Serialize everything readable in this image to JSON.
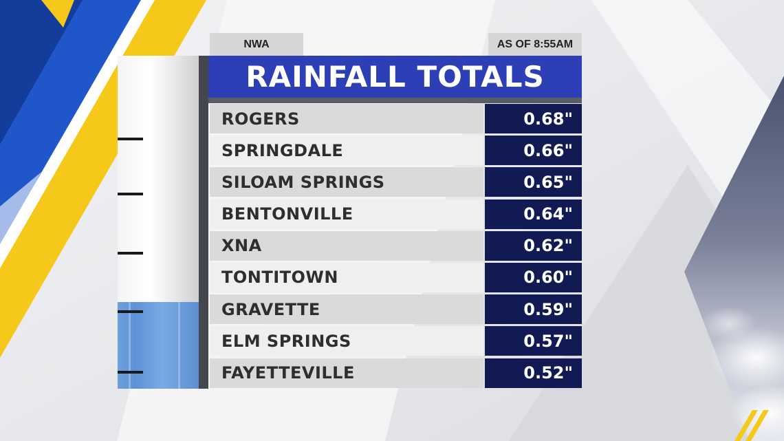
{
  "header": {
    "region_label": "NWA",
    "timestamp_label": "AS OF 8:55AM",
    "title": "RAINFALL TOTALS"
  },
  "gauge": {
    "fill_fraction": 0.26
  },
  "colors": {
    "title_bar": "#2d3fb6",
    "value_cell": "#111a52",
    "row_dark": "#dadada",
    "row_light": "#efefef",
    "gauge_fill": "#6a9bdc",
    "brand_blue": "#1f56c9",
    "brand_yellow": "#f6c81a"
  },
  "rows": [
    {
      "city": "ROGERS",
      "value": "0.68\""
    },
    {
      "city": "SPRINGDALE",
      "value": "0.66\""
    },
    {
      "city": "SILOAM SPRINGS",
      "value": "0.65\""
    },
    {
      "city": "BENTONVILLE",
      "value": "0.64\""
    },
    {
      "city": "XNA",
      "value": "0.62\""
    },
    {
      "city": "TONTITOWN",
      "value": "0.60\""
    },
    {
      "city": "GRAVETTE",
      "value": "0.59\""
    },
    {
      "city": "ELM SPRINGS",
      "value": "0.57\""
    },
    {
      "city": "FAYETTEVILLE",
      "value": "0.52\""
    }
  ]
}
